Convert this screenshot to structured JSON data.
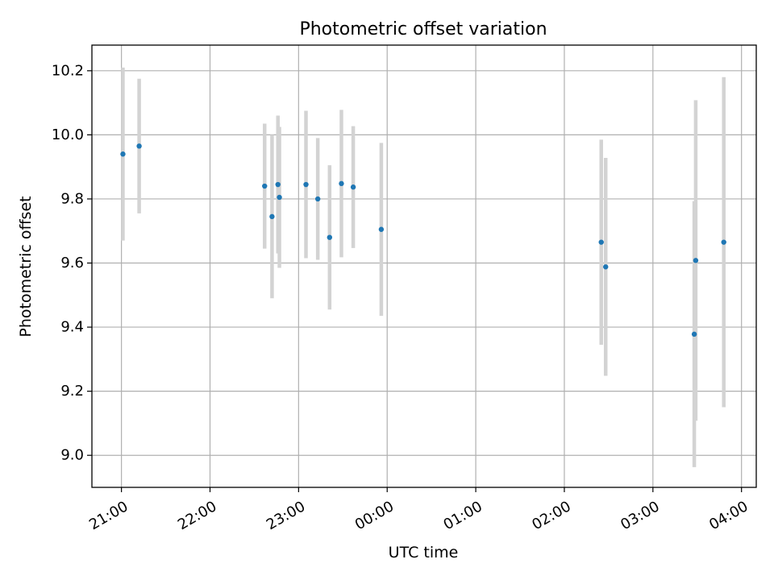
{
  "chart_data": {
    "type": "scatter",
    "title": "Photometric offset variation",
    "xlabel": "UTC time",
    "ylabel": "Photometric offset",
    "x_ticks": [
      "21:00",
      "22:00",
      "23:00",
      "00:00",
      "01:00",
      "02:00",
      "03:00",
      "04:00"
    ],
    "y_ticks": [
      "9.0",
      "9.2",
      "9.4",
      "9.6",
      "9.8",
      "10.0",
      "10.2"
    ],
    "y_tick_values": [
      9.0,
      9.2,
      9.4,
      9.6,
      9.8,
      10.0,
      10.2
    ],
    "xlim": [
      "20:40",
      "04:10"
    ],
    "ylim": [
      8.9,
      10.28
    ],
    "grid": true,
    "point_color": "#1f77b4",
    "errorbar_color": "#d3d3d3",
    "points": [
      {
        "t": "21:01",
        "y": 9.94,
        "err": 0.27
      },
      {
        "t": "21:12",
        "y": 9.965,
        "err": 0.21
      },
      {
        "t": "22:37",
        "y": 9.84,
        "err": 0.195
      },
      {
        "t": "22:42",
        "y": 9.745,
        "err": 0.255
      },
      {
        "t": "22:46",
        "y": 9.845,
        "err": 0.215
      },
      {
        "t": "22:47",
        "y": 9.805,
        "err": 0.22
      },
      {
        "t": "23:05",
        "y": 9.845,
        "err": 0.23
      },
      {
        "t": "23:13",
        "y": 9.8,
        "err": 0.19
      },
      {
        "t": "23:21",
        "y": 9.68,
        "err": 0.225
      },
      {
        "t": "23:29",
        "y": 9.848,
        "err": 0.23
      },
      {
        "t": "23:37",
        "y": 9.837,
        "err": 0.19
      },
      {
        "t": "23:56",
        "y": 9.705,
        "err": 0.27
      },
      {
        "t": "02:25",
        "y": 9.665,
        "err": 0.32
      },
      {
        "t": "02:28",
        "y": 9.588,
        "err": 0.34
      },
      {
        "t": "03:28",
        "y": 9.378,
        "err": 0.415
      },
      {
        "t": "03:29",
        "y": 9.608,
        "err": 0.5
      },
      {
        "t": "03:48",
        "y": 9.665,
        "err": 0.515
      }
    ]
  }
}
